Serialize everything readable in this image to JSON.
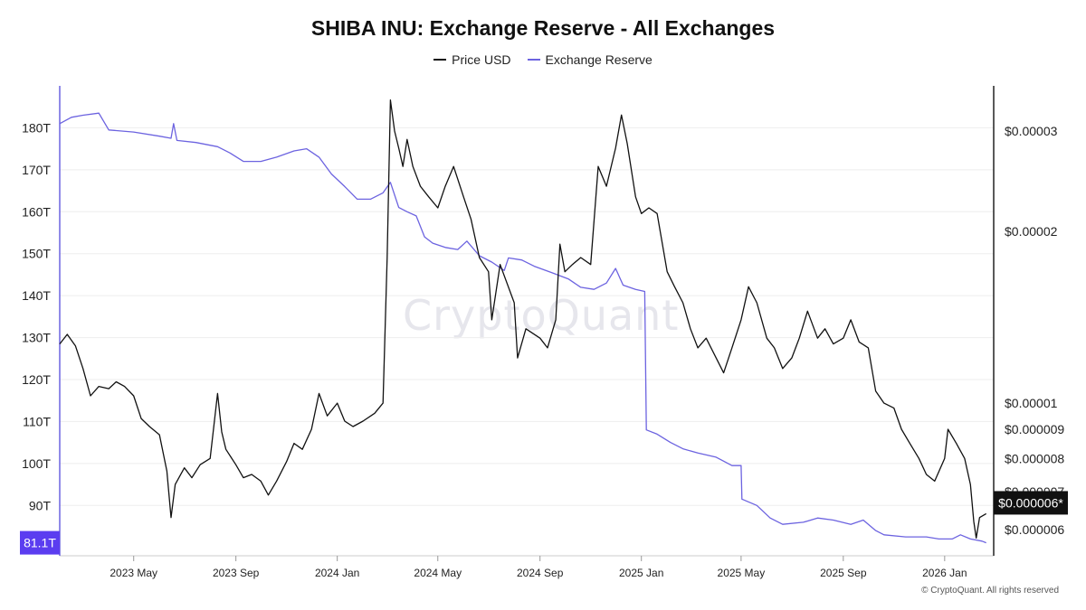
{
  "chart_data": {
    "type": "line",
    "title": "SHIBA INU: Exchange Reserve - All Exchanges",
    "x_range": [
      "2023-02-01",
      "2026-03-01"
    ],
    "x_tick_labels": [
      "2023 May",
      "2023 Sep",
      "2024 Jan",
      "2024 May",
      "2024 Sep",
      "2025 Jan",
      "2025 May",
      "2025 Sep",
      "2026 Jan"
    ],
    "x_tick_dates": [
      "2023-05-01",
      "2023-09-01",
      "2024-01-01",
      "2024-05-01",
      "2024-09-01",
      "2025-01-01",
      "2025-05-01",
      "2025-09-01",
      "2026-01-01"
    ],
    "left_axis": {
      "label": "",
      "range": [
        78,
        190
      ],
      "ticks": [
        90,
        100,
        110,
        120,
        130,
        140,
        150,
        160,
        170,
        180
      ],
      "tick_labels": [
        "90T",
        "100T",
        "110T",
        "120T",
        "130T",
        "140T",
        "150T",
        "160T",
        "170T",
        "180T"
      ],
      "current_value_label": "81.1T"
    },
    "right_axis": {
      "label": "",
      "scale": "log",
      "range": [
        5.4e-06,
        3.6e-05
      ],
      "ticks": [
        6e-06,
        7e-06,
        8e-06,
        9e-06,
        1e-05,
        2e-05,
        3e-05
      ],
      "tick_labels": [
        "$0.000006",
        "$0.000007",
        "$0.000008",
        "$0.000009",
        "$0.00001",
        "$0.00002",
        "$0.00003"
      ],
      "current_value_label": "$0.000006*"
    },
    "series": [
      {
        "name": "Price USD",
        "axis": "right",
        "color": "#111111",
        "points": [
          [
            "2023-02-01",
            1.27e-05
          ],
          [
            "2023-02-10",
            1.32e-05
          ],
          [
            "2023-02-20",
            1.26e-05
          ],
          [
            "2023-03-01",
            1.15e-05
          ],
          [
            "2023-03-10",
            1.03e-05
          ],
          [
            "2023-03-20",
            1.07e-05
          ],
          [
            "2023-04-01",
            1.06e-05
          ],
          [
            "2023-04-10",
            1.09e-05
          ],
          [
            "2023-04-20",
            1.07e-05
          ],
          [
            "2023-05-01",
            1.03e-05
          ],
          [
            "2023-05-10",
            9.4e-06
          ],
          [
            "2023-05-20",
            9.1e-06
          ],
          [
            "2023-06-01",
            8.8e-06
          ],
          [
            "2023-06-10",
            7.6e-06
          ],
          [
            "2023-06-15",
            6.3e-06
          ],
          [
            "2023-06-20",
            7.2e-06
          ],
          [
            "2023-07-01",
            7.7e-06
          ],
          [
            "2023-07-10",
            7.4e-06
          ],
          [
            "2023-07-20",
            7.8e-06
          ],
          [
            "2023-08-01",
            8e-06
          ],
          [
            "2023-08-10",
            1.04e-05
          ],
          [
            "2023-08-15",
            8.9e-06
          ],
          [
            "2023-08-20",
            8.3e-06
          ],
          [
            "2023-09-01",
            7.8e-06
          ],
          [
            "2023-09-10",
            7.4e-06
          ],
          [
            "2023-09-20",
            7.5e-06
          ],
          [
            "2023-10-01",
            7.3e-06
          ],
          [
            "2023-10-10",
            6.9e-06
          ],
          [
            "2023-10-20",
            7.3e-06
          ],
          [
            "2023-11-01",
            7.9e-06
          ],
          [
            "2023-11-10",
            8.5e-06
          ],
          [
            "2023-11-20",
            8.3e-06
          ],
          [
            "2023-12-01",
            9e-06
          ],
          [
            "2023-12-10",
            1.04e-05
          ],
          [
            "2023-12-20",
            9.5e-06
          ],
          [
            "2024-01-01",
            1e-05
          ],
          [
            "2024-01-10",
            9.3e-06
          ],
          [
            "2024-01-20",
            9.1e-06
          ],
          [
            "2024-02-01",
            9.3e-06
          ],
          [
            "2024-02-15",
            9.6e-06
          ],
          [
            "2024-02-25",
            1e-05
          ],
          [
            "2024-03-01",
            1.8e-05
          ],
          [
            "2024-03-05",
            3.4e-05
          ],
          [
            "2024-03-10",
            3e-05
          ],
          [
            "2024-03-15",
            2.8e-05
          ],
          [
            "2024-03-20",
            2.6e-05
          ],
          [
            "2024-03-25",
            2.9e-05
          ],
          [
            "2024-04-01",
            2.6e-05
          ],
          [
            "2024-04-10",
            2.4e-05
          ],
          [
            "2024-04-20",
            2.3e-05
          ],
          [
            "2024-05-01",
            2.2e-05
          ],
          [
            "2024-05-10",
            2.4e-05
          ],
          [
            "2024-05-20",
            2.6e-05
          ],
          [
            "2024-06-01",
            2.3e-05
          ],
          [
            "2024-06-10",
            2.1e-05
          ],
          [
            "2024-06-20",
            1.8e-05
          ],
          [
            "2024-07-01",
            1.7e-05
          ],
          [
            "2024-07-05",
            1.4e-05
          ],
          [
            "2024-07-15",
            1.75e-05
          ],
          [
            "2024-08-01",
            1.5e-05
          ],
          [
            "2024-08-05",
            1.2e-05
          ],
          [
            "2024-08-15",
            1.35e-05
          ],
          [
            "2024-09-01",
            1.3e-05
          ],
          [
            "2024-09-10",
            1.25e-05
          ],
          [
            "2024-09-20",
            1.4e-05
          ],
          [
            "2024-09-25",
            1.9e-05
          ],
          [
            "2024-10-01",
            1.7e-05
          ],
          [
            "2024-10-10",
            1.75e-05
          ],
          [
            "2024-10-20",
            1.8e-05
          ],
          [
            "2024-11-01",
            1.75e-05
          ],
          [
            "2024-11-10",
            2.6e-05
          ],
          [
            "2024-11-20",
            2.4e-05
          ],
          [
            "2024-12-01",
            2.8e-05
          ],
          [
            "2024-12-08",
            3.2e-05
          ],
          [
            "2024-12-15",
            2.85e-05
          ],
          [
            "2024-12-25",
            2.3e-05
          ],
          [
            "2025-01-01",
            2.15e-05
          ],
          [
            "2025-01-10",
            2.2e-05
          ],
          [
            "2025-01-20",
            2.15e-05
          ],
          [
            "2025-02-01",
            1.7e-05
          ],
          [
            "2025-02-10",
            1.6e-05
          ],
          [
            "2025-02-20",
            1.5e-05
          ],
          [
            "2025-03-01",
            1.35e-05
          ],
          [
            "2025-03-10",
            1.25e-05
          ],
          [
            "2025-03-20",
            1.3e-05
          ],
          [
            "2025-04-01",
            1.2e-05
          ],
          [
            "2025-04-10",
            1.13e-05
          ],
          [
            "2025-04-20",
            1.25e-05
          ],
          [
            "2025-05-01",
            1.4e-05
          ],
          [
            "2025-05-10",
            1.6e-05
          ],
          [
            "2025-05-20",
            1.5e-05
          ],
          [
            "2025-06-01",
            1.3e-05
          ],
          [
            "2025-06-10",
            1.25e-05
          ],
          [
            "2025-06-20",
            1.15e-05
          ],
          [
            "2025-07-01",
            1.2e-05
          ],
          [
            "2025-07-10",
            1.3e-05
          ],
          [
            "2025-07-20",
            1.45e-05
          ],
          [
            "2025-08-01",
            1.3e-05
          ],
          [
            "2025-08-10",
            1.35e-05
          ],
          [
            "2025-08-20",
            1.27e-05
          ],
          [
            "2025-09-01",
            1.3e-05
          ],
          [
            "2025-09-10",
            1.4e-05
          ],
          [
            "2025-09-20",
            1.28e-05
          ],
          [
            "2025-10-01",
            1.25e-05
          ],
          [
            "2025-10-10",
            1.05e-05
          ],
          [
            "2025-10-20",
            1e-05
          ],
          [
            "2025-11-01",
            9.8e-06
          ],
          [
            "2025-11-10",
            9e-06
          ],
          [
            "2025-11-20",
            8.5e-06
          ],
          [
            "2025-12-01",
            8e-06
          ],
          [
            "2025-12-10",
            7.5e-06
          ],
          [
            "2025-12-20",
            7.3e-06
          ],
          [
            "2026-01-01",
            8e-06
          ],
          [
            "2026-01-05",
            9e-06
          ],
          [
            "2026-01-15",
            8.5e-06
          ],
          [
            "2026-01-25",
            8e-06
          ],
          [
            "2026-02-01",
            7.2e-06
          ],
          [
            "2026-02-05",
            6.2e-06
          ],
          [
            "2026-02-08",
            5.8e-06
          ],
          [
            "2026-02-12",
            6.3e-06
          ],
          [
            "2026-02-20",
            6.4e-06
          ]
        ]
      },
      {
        "name": "Exchange Reserve",
        "axis": "left",
        "color": "#6c63e0",
        "points": [
          [
            "2023-02-01",
            181.0
          ],
          [
            "2023-02-15",
            182.5
          ],
          [
            "2023-03-01",
            183.0
          ],
          [
            "2023-03-20",
            183.5
          ],
          [
            "2023-04-01",
            179.5
          ],
          [
            "2023-05-01",
            179.0
          ],
          [
            "2023-06-01",
            178.0
          ],
          [
            "2023-06-15",
            177.5
          ],
          [
            "2023-06-18",
            181.0
          ],
          [
            "2023-06-22",
            177.0
          ],
          [
            "2023-07-15",
            176.5
          ],
          [
            "2023-08-10",
            175.5
          ],
          [
            "2023-08-25",
            174.0
          ],
          [
            "2023-09-10",
            172.0
          ],
          [
            "2023-10-01",
            172.0
          ],
          [
            "2023-10-20",
            173.0
          ],
          [
            "2023-11-10",
            174.5
          ],
          [
            "2023-11-25",
            175.0
          ],
          [
            "2023-12-10",
            173.0
          ],
          [
            "2023-12-25",
            169.0
          ],
          [
            "2024-01-10",
            166.0
          ],
          [
            "2024-01-25",
            163.0
          ],
          [
            "2024-02-10",
            163.0
          ],
          [
            "2024-02-25",
            164.5
          ],
          [
            "2024-03-05",
            167.0
          ],
          [
            "2024-03-15",
            161.0
          ],
          [
            "2024-03-25",
            160.0
          ],
          [
            "2024-04-05",
            159.0
          ],
          [
            "2024-04-15",
            154.0
          ],
          [
            "2024-04-25",
            152.5
          ],
          [
            "2024-05-10",
            151.5
          ],
          [
            "2024-05-25",
            151.0
          ],
          [
            "2024-06-05",
            153.0
          ],
          [
            "2024-06-20",
            149.5
          ],
          [
            "2024-07-05",
            148.0
          ],
          [
            "2024-07-20",
            146.0
          ],
          [
            "2024-07-25",
            149.0
          ],
          [
            "2024-08-10",
            148.5
          ],
          [
            "2024-08-25",
            147.0
          ],
          [
            "2024-09-15",
            145.5
          ],
          [
            "2024-10-05",
            144.0
          ],
          [
            "2024-10-20",
            142.0
          ],
          [
            "2024-11-05",
            141.5
          ],
          [
            "2024-11-20",
            143.0
          ],
          [
            "2024-12-01",
            146.5
          ],
          [
            "2024-12-10",
            142.5
          ],
          [
            "2024-12-25",
            141.5
          ],
          [
            "2025-01-05",
            141.0
          ],
          [
            "2025-01-07",
            108.0
          ],
          [
            "2025-01-20",
            107.0
          ],
          [
            "2025-02-05",
            105.0
          ],
          [
            "2025-02-20",
            103.5
          ],
          [
            "2025-03-10",
            102.5
          ],
          [
            "2025-04-01",
            101.5
          ],
          [
            "2025-04-20",
            99.5
          ],
          [
            "2025-05-01",
            99.5
          ],
          [
            "2025-05-02",
            91.5
          ],
          [
            "2025-05-20",
            90.0
          ],
          [
            "2025-06-05",
            87.0
          ],
          [
            "2025-06-20",
            85.5
          ],
          [
            "2025-07-15",
            86.0
          ],
          [
            "2025-08-01",
            87.0
          ],
          [
            "2025-08-20",
            86.5
          ],
          [
            "2025-09-10",
            85.5
          ],
          [
            "2025-09-25",
            86.5
          ],
          [
            "2025-10-10",
            84.0
          ],
          [
            "2025-10-20",
            83.0
          ],
          [
            "2025-11-15",
            82.5
          ],
          [
            "2025-12-10",
            82.5
          ],
          [
            "2025-12-25",
            82.0
          ],
          [
            "2026-01-10",
            82.0
          ],
          [
            "2026-01-20",
            83.0
          ],
          [
            "2026-02-01",
            82.0
          ],
          [
            "2026-02-15",
            81.5
          ],
          [
            "2026-02-20",
            81.1
          ]
        ]
      }
    ],
    "legend": [
      "Price USD",
      "Exchange Reserve"
    ],
    "legend_position": "top-center",
    "grid": "horizontal",
    "watermark": "CryptoQuant",
    "footer": "© CryptoQuant. All rights reserved"
  },
  "colors": {
    "price": "#111111",
    "reserve": "#6c63e0",
    "reserve_badge": "#5b3df0",
    "price_badge": "#111111",
    "grid": "#eeeeee",
    "axis": "#222222"
  }
}
